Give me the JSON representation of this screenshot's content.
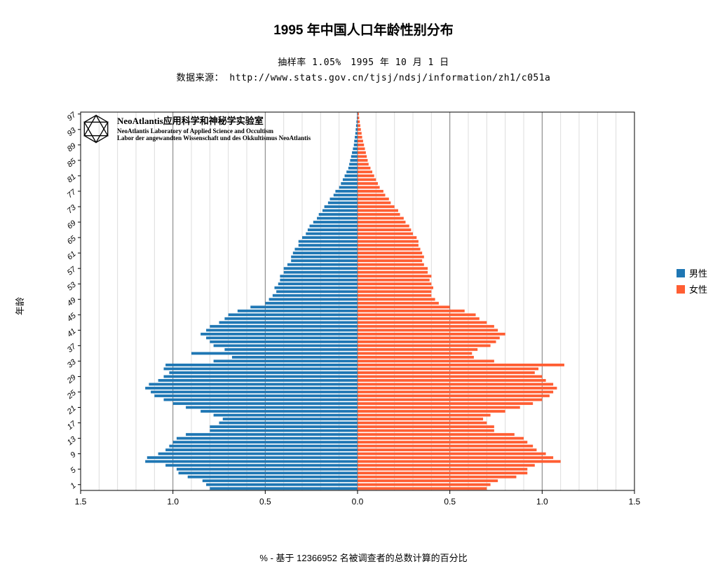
{
  "title": "1995 年中国人口年龄性别分布",
  "subtitle1": "抽样率 1.05%　1995 年 10 月 1 日",
  "subtitle2": "数据来源： http://www.stats.gov.cn/tjsj/ndsj/information/zh1/c051a",
  "ylabel": "年龄",
  "xlabel": "% - 基于 12366952 名被调查者的总数计算的百分比",
  "legend": {
    "male": "男性",
    "female": "女性"
  },
  "colors": {
    "male": "#1f77b4",
    "female": "#ff5e33",
    "background": "#ffffff",
    "grid_major": "#808080",
    "grid_minor": "#dcdcdc",
    "axis": "#000000",
    "text": "#000000"
  },
  "watermark": {
    "line1": "NeoAtlantis应用科学和神秘学实验室",
    "line2": "NeoAtlantis Laboratory of Applied Science and Occultism",
    "line3": "Labor der angewandten Wissenschaft und des Okkultismus NeoAtlantis"
  },
  "chart": {
    "type": "population-pyramid",
    "xlim": [
      -1.5,
      1.5
    ],
    "x_ticks_major": [
      1.5,
      1.0,
      0.5,
      0.0,
      0.5,
      1.0,
      1.5
    ],
    "x_ticks_major_pos": [
      -1.5,
      -1.0,
      -0.5,
      0.0,
      0.5,
      1.0,
      1.5
    ],
    "x_minor_step": 0.1,
    "y_min_age": 0,
    "y_max_age": 97,
    "y_tick_step": 4,
    "y_tick_start": 1,
    "bar_height_ratio": 0.7,
    "ages": [
      0,
      1,
      2,
      3,
      4,
      5,
      6,
      7,
      8,
      9,
      10,
      11,
      12,
      13,
      14,
      15,
      16,
      17,
      18,
      19,
      20,
      21,
      22,
      23,
      24,
      25,
      26,
      27,
      28,
      29,
      30,
      31,
      32,
      33,
      34,
      35,
      36,
      37,
      38,
      39,
      40,
      41,
      42,
      43,
      44,
      45,
      46,
      47,
      48,
      49,
      50,
      51,
      52,
      53,
      54,
      55,
      56,
      57,
      58,
      59,
      60,
      61,
      62,
      63,
      64,
      65,
      66,
      67,
      68,
      69,
      70,
      71,
      72,
      73,
      74,
      75,
      76,
      77,
      78,
      79,
      80,
      81,
      82,
      83,
      84,
      85,
      86,
      87,
      88,
      89,
      90,
      91,
      92,
      93,
      94,
      95,
      96,
      97
    ],
    "male": [
      0.8,
      0.82,
      0.84,
      0.92,
      0.97,
      0.98,
      1.04,
      1.15,
      1.14,
      1.08,
      1.04,
      1.02,
      1.0,
      0.98,
      0.93,
      0.8,
      0.8,
      0.75,
      0.73,
      0.78,
      0.85,
      0.93,
      1.0,
      1.05,
      1.1,
      1.12,
      1.15,
      1.13,
      1.08,
      1.05,
      1.02,
      1.05,
      1.04,
      0.78,
      0.68,
      0.9,
      0.72,
      0.78,
      0.8,
      0.82,
      0.85,
      0.82,
      0.8,
      0.75,
      0.72,
      0.7,
      0.65,
      0.58,
      0.5,
      0.48,
      0.46,
      0.44,
      0.45,
      0.43,
      0.42,
      0.42,
      0.4,
      0.4,
      0.38,
      0.36,
      0.36,
      0.35,
      0.34,
      0.32,
      0.32,
      0.3,
      0.28,
      0.27,
      0.26,
      0.24,
      0.22,
      0.21,
      0.19,
      0.18,
      0.16,
      0.15,
      0.13,
      0.12,
      0.1,
      0.09,
      0.08,
      0.07,
      0.06,
      0.05,
      0.045,
      0.04,
      0.035,
      0.03,
      0.025,
      0.02,
      0.018,
      0.015,
      0.012,
      0.01,
      0.008,
      0.006,
      0.004,
      0.003
    ],
    "female": [
      0.7,
      0.72,
      0.76,
      0.86,
      0.92,
      0.92,
      0.96,
      1.1,
      1.06,
      1.02,
      0.97,
      0.95,
      0.92,
      0.9,
      0.85,
      0.74,
      0.74,
      0.7,
      0.68,
      0.72,
      0.8,
      0.88,
      0.95,
      1.0,
      1.04,
      1.06,
      1.08,
      1.06,
      1.02,
      1.0,
      0.96,
      0.98,
      1.12,
      0.74,
      0.63,
      0.62,
      0.65,
      0.72,
      0.75,
      0.77,
      0.8,
      0.76,
      0.74,
      0.7,
      0.66,
      0.64,
      0.58,
      0.5,
      0.44,
      0.42,
      0.4,
      0.4,
      0.41,
      0.4,
      0.39,
      0.4,
      0.38,
      0.38,
      0.36,
      0.35,
      0.36,
      0.35,
      0.34,
      0.33,
      0.33,
      0.32,
      0.3,
      0.29,
      0.28,
      0.26,
      0.25,
      0.23,
      0.22,
      0.2,
      0.18,
      0.17,
      0.15,
      0.14,
      0.12,
      0.11,
      0.1,
      0.09,
      0.08,
      0.07,
      0.06,
      0.055,
      0.05,
      0.045,
      0.04,
      0.035,
      0.03,
      0.025,
      0.022,
      0.018,
      0.015,
      0.012,
      0.009,
      0.007
    ]
  },
  "fonts": {
    "title_size": 19,
    "subtitle_size": 13,
    "axis_label_size": 13,
    "tick_size": 11,
    "legend_size": 13
  }
}
